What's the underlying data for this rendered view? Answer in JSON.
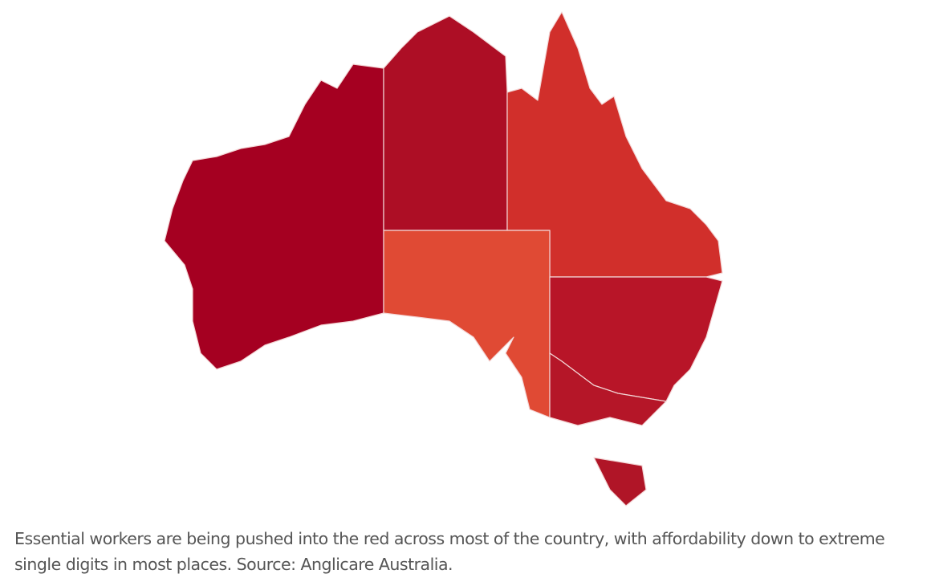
{
  "map": {
    "regions": [
      {
        "name": "Western Australia",
        "color": "#a50021"
      },
      {
        "name": "Northern Territory",
        "color": "#ad0e25"
      },
      {
        "name": "Queensland",
        "color": "#d12f2b"
      },
      {
        "name": "South Australia",
        "color": "#e04a34"
      },
      {
        "name": "New South Wales",
        "color": "#b81528"
      },
      {
        "name": "Victoria",
        "color": "#b51628"
      },
      {
        "name": "Tasmania",
        "color": "#b01527"
      }
    ]
  },
  "caption": "Essential workers are being pushed into the red across most of the country, with affordability down to extreme single digits in most places. Source: Anglicare Australia."
}
